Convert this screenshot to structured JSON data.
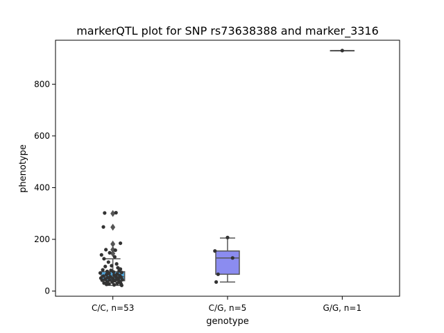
{
  "chart_data": {
    "type": "box",
    "title": "markerQTL plot for SNP rs73638388 and marker_3316",
    "xlabel": "genotype",
    "ylabel": "phenotype",
    "categories": [
      "C/C, n=53",
      "C/G, n=5",
      "G/G, n=1"
    ],
    "yticks": [
      0,
      200,
      400,
      600,
      800
    ],
    "ylim": [
      -20,
      970
    ],
    "grid": false,
    "colors": [
      "#4fa6dc",
      "#8b8cf0",
      "#f0a04a"
    ],
    "boxes": [
      {
        "q1": 40,
        "median": 55,
        "q3": 75,
        "whisker_low": 22,
        "whisker_high": 125,
        "outliers": [
          300,
          247,
          182,
          160,
          145
        ]
      },
      {
        "q1": 65,
        "median": 128,
        "q3": 155,
        "whisker_low": 35,
        "whisker_high": 205,
        "outliers": []
      },
      {
        "q1": 930,
        "median": 930,
        "q3": 930,
        "whisker_low": 930,
        "whisker_high": 930,
        "outliers": []
      }
    ],
    "points": [
      [
        [
          -0.13,
          302
        ],
        [
          0.05,
          303
        ],
        [
          -0.15,
          248
        ],
        [
          -0.11,
          160
        ],
        [
          0.04,
          158
        ],
        [
          0.12,
          185
        ],
        [
          -0.05,
          148
        ],
        [
          -0.18,
          140
        ],
        [
          -0.14,
          125
        ],
        [
          0.03,
          132
        ],
        [
          -0.07,
          112
        ],
        [
          0.06,
          105
        ],
        [
          -0.02,
          98
        ],
        [
          -0.12,
          95
        ],
        [
          0.08,
          90
        ],
        [
          0.12,
          85
        ],
        [
          -0.16,
          82
        ],
        [
          -0.03,
          80
        ],
        [
          0.1,
          78
        ],
        [
          -0.09,
          76
        ],
        [
          0.01,
          74
        ],
        [
          0.14,
          72
        ],
        [
          -0.2,
          70
        ],
        [
          -0.06,
          68
        ],
        [
          0.07,
          66
        ],
        [
          -0.1,
          64
        ],
        [
          0.02,
          62
        ],
        [
          0.11,
          60
        ],
        [
          -0.15,
          58
        ],
        [
          -0.04,
          56
        ],
        [
          0.05,
          55
        ],
        [
          0.13,
          54
        ],
        [
          -0.08,
          52
        ],
        [
          -0.19,
          50
        ],
        [
          0.09,
          49
        ],
        [
          0.0,
          48
        ],
        [
          -0.12,
          46
        ],
        [
          0.06,
          45
        ],
        [
          0.15,
          44
        ],
        [
          -0.05,
          43
        ],
        [
          -0.17,
          42
        ],
        [
          0.03,
          40
        ],
        [
          0.1,
          38
        ],
        [
          -0.09,
          36
        ],
        [
          -0.01,
          35
        ],
        [
          0.12,
          33
        ],
        [
          -0.14,
          31
        ],
        [
          0.07,
          30
        ],
        [
          -0.06,
          28
        ],
        [
          0.13,
          27
        ],
        [
          -0.1,
          26
        ],
        [
          0.02,
          24
        ],
        [
          0.14,
          22
        ]
      ],
      [
        [
          0.0,
          207
        ],
        [
          -0.2,
          155
        ],
        [
          0.08,
          128
        ],
        [
          -0.15,
          65
        ],
        [
          -0.18,
          35
        ]
      ],
      [
        [
          0.0,
          930
        ]
      ]
    ]
  }
}
